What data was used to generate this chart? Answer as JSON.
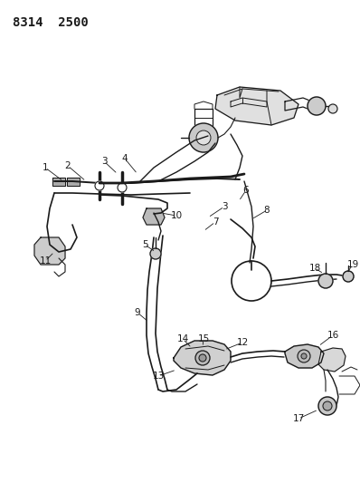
{
  "title": "8314  2500",
  "title_fontsize": 10,
  "bg_color": "#ffffff",
  "line_color": "#1a1a1a",
  "label_color": "#111111",
  "figsize": [
    3.98,
    5.33
  ],
  "dpi": 100
}
